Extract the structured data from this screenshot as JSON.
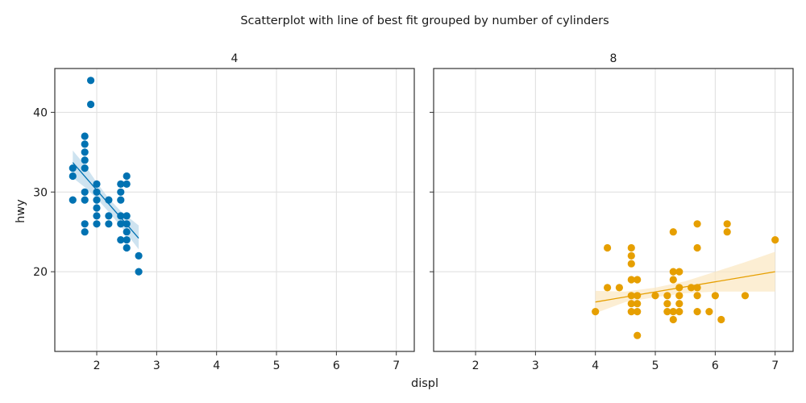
{
  "chart_data": {
    "type": "scatter",
    "title": "Scatterplot with line of best fit grouped by number of cylinders",
    "xlabel": "displ",
    "ylabel": "hwy",
    "xlim": [
      1.3,
      7.3
    ],
    "ylim": [
      10,
      45.5
    ],
    "xticks": [
      2,
      3,
      4,
      5,
      6,
      7
    ],
    "yticks": [
      20,
      30,
      40
    ],
    "grid": true,
    "shared_y": true,
    "facets": [
      {
        "title": "4",
        "color": "#0072b2",
        "band_color": "#b9d7ea",
        "points": [
          [
            1.6,
            33
          ],
          [
            1.6,
            32
          ],
          [
            1.6,
            29
          ],
          [
            1.8,
            37
          ],
          [
            1.8,
            36
          ],
          [
            1.8,
            35
          ],
          [
            1.8,
            34
          ],
          [
            1.8,
            33
          ],
          [
            1.8,
            30
          ],
          [
            1.8,
            29
          ],
          [
            1.8,
            26
          ],
          [
            1.8,
            25
          ],
          [
            1.9,
            44
          ],
          [
            1.9,
            41
          ],
          [
            2.0,
            31
          ],
          [
            2.0,
            30
          ],
          [
            2.0,
            29
          ],
          [
            2.0,
            28
          ],
          [
            2.0,
            27
          ],
          [
            2.0,
            26
          ],
          [
            2.2,
            29
          ],
          [
            2.2,
            27
          ],
          [
            2.2,
            26
          ],
          [
            2.4,
            31
          ],
          [
            2.4,
            30
          ],
          [
            2.4,
            29
          ],
          [
            2.4,
            27
          ],
          [
            2.4,
            26
          ],
          [
            2.4,
            24
          ],
          [
            2.5,
            32
          ],
          [
            2.5,
            31
          ],
          [
            2.5,
            27
          ],
          [
            2.5,
            26
          ],
          [
            2.5,
            25
          ],
          [
            2.5,
            24
          ],
          [
            2.5,
            23
          ],
          [
            2.7,
            22
          ],
          [
            2.7,
            20
          ]
        ],
        "fit": {
          "x": [
            1.6,
            2.7
          ],
          "y": [
            33.7,
            24.2
          ]
        },
        "band": {
          "x": [
            1.6,
            1.8,
            2.0,
            2.2,
            2.4,
            2.6,
            2.7
          ],
          "lower": [
            31.8,
            30.6,
            29.2,
            27.5,
            25.7,
            23.8,
            22.8
          ],
          "upper": [
            35.2,
            33.4,
            31.2,
            29.2,
            27.6,
            26.4,
            25.8
          ]
        }
      },
      {
        "title": "8",
        "color": "#e69f00",
        "band_color": "#fbe7c1",
        "points": [
          [
            4.0,
            15
          ],
          [
            4.2,
            23
          ],
          [
            4.2,
            18
          ],
          [
            4.4,
            18
          ],
          [
            4.6,
            23
          ],
          [
            4.6,
            22
          ],
          [
            4.6,
            21
          ],
          [
            4.6,
            19
          ],
          [
            4.6,
            17
          ],
          [
            4.6,
            16
          ],
          [
            4.6,
            15
          ],
          [
            4.7,
            19
          ],
          [
            4.7,
            17
          ],
          [
            4.7,
            16
          ],
          [
            4.7,
            15
          ],
          [
            4.7,
            12
          ],
          [
            5.0,
            17
          ],
          [
            5.2,
            17
          ],
          [
            5.2,
            16
          ],
          [
            5.2,
            15
          ],
          [
            5.3,
            25
          ],
          [
            5.3,
            20
          ],
          [
            5.3,
            19
          ],
          [
            5.3,
            15
          ],
          [
            5.3,
            14
          ],
          [
            5.4,
            20
          ],
          [
            5.4,
            18
          ],
          [
            5.4,
            17
          ],
          [
            5.4,
            16
          ],
          [
            5.4,
            15
          ],
          [
            5.6,
            18
          ],
          [
            5.7,
            26
          ],
          [
            5.7,
            23
          ],
          [
            5.7,
            18
          ],
          [
            5.7,
            17
          ],
          [
            5.7,
            15
          ],
          [
            5.9,
            15
          ],
          [
            6.0,
            17
          ],
          [
            6.1,
            14
          ],
          [
            6.2,
            26
          ],
          [
            6.2,
            25
          ],
          [
            6.5,
            17
          ],
          [
            7.0,
            24
          ]
        ],
        "fit": {
          "x": [
            4.0,
            7.0
          ],
          "y": [
            16.2,
            20.0
          ]
        },
        "band": {
          "x": [
            4.0,
            4.5,
            5.0,
            5.5,
            6.0,
            6.5,
            7.0
          ],
          "lower": [
            14.8,
            16.2,
            16.8,
            17.3,
            17.5,
            17.5,
            17.5
          ],
          "upper": [
            17.6,
            17.5,
            18.0,
            18.8,
            20.0,
            21.2,
            22.5
          ]
        }
      }
    ]
  }
}
